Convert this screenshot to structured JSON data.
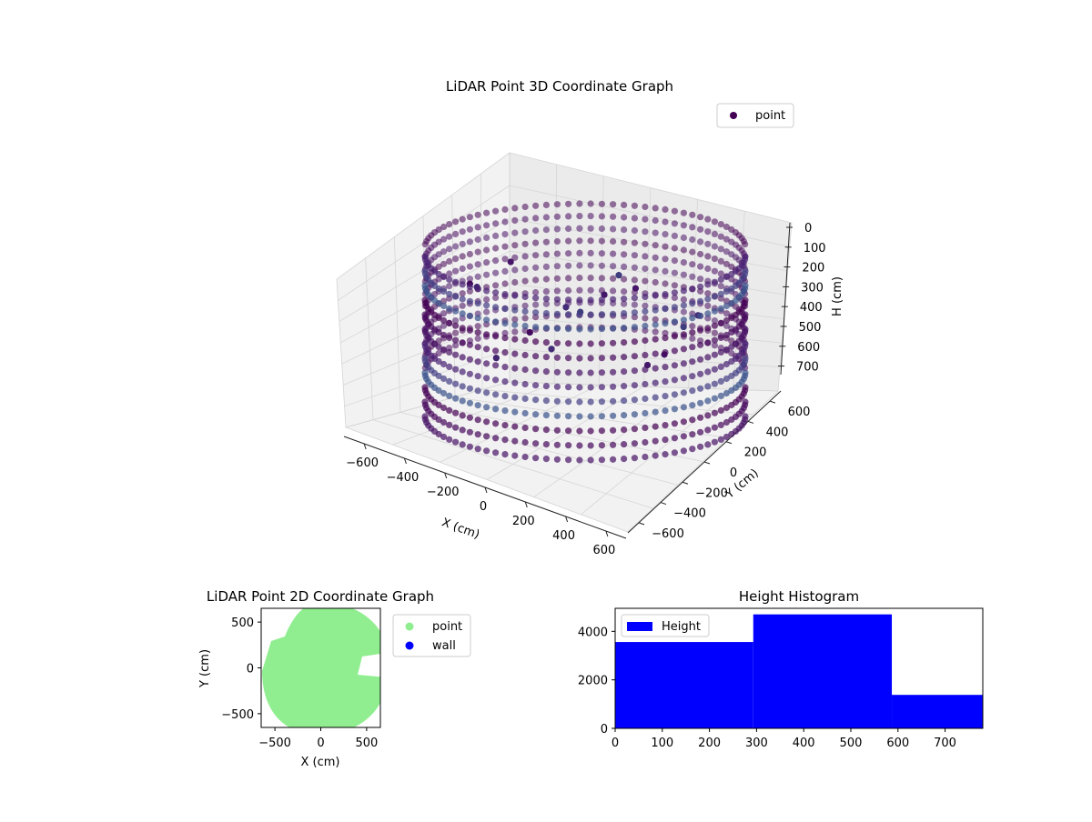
{
  "chart_data": [
    {
      "type": "scatter3d",
      "title": "LiDAR Point 3D Coordinate Graph",
      "xlabel": "X (cm)",
      "ylabel": "Y (cm)",
      "zlabel": "H (cm)",
      "x_ticks": [
        "−600",
        "−400",
        "−200",
        "0",
        "200",
        "400",
        "600"
      ],
      "y_ticks": [
        "−600",
        "−400",
        "−200",
        "0",
        "200",
        "400",
        "600"
      ],
      "z_ticks": [
        "0",
        "100",
        "200",
        "300",
        "400",
        "500",
        "600",
        "700"
      ],
      "xlim": [
        -700,
        700
      ],
      "ylim": [
        -700,
        700
      ],
      "zlim": [
        0,
        780
      ],
      "z_inverted": true,
      "legend": {
        "placement": "top-right",
        "entries": [
          "point"
        ]
      },
      "series": [
        {
          "name": "point",
          "color": "#440154",
          "shape": "cylindrical wall of radius ~600 cm spanning heights 0–780 cm, with interior clutter"
        }
      ]
    },
    {
      "type": "scatter",
      "title": "LiDAR Point 2D Coordinate Graph",
      "xlabel": "X (cm)",
      "ylabel": "Y (cm)",
      "x_ticks": [
        "−500",
        "0",
        "500"
      ],
      "y_ticks": [
        "500",
        "0",
        "−500"
      ],
      "xlim": [
        -650,
        650
      ],
      "ylim": [
        -650,
        650
      ],
      "legend": {
        "placement": "outside-right",
        "entries": [
          {
            "name": "point",
            "color": "#90ee90"
          },
          {
            "name": "wall",
            "color": "#0000ff"
          }
        ]
      }
    },
    {
      "type": "bar",
      "title": "Height Histogram",
      "x_ticks": [
        "0",
        "100",
        "200",
        "300",
        "400",
        "500",
        "600",
        "700"
      ],
      "y_ticks": [
        "0",
        "2000",
        "4000"
      ],
      "xlim": [
        0,
        780
      ],
      "ylim": [
        0,
        4950
      ],
      "legend": {
        "placement": "top-left",
        "entries": [
          {
            "name": "Height",
            "color": "#0000ff"
          }
        ]
      },
      "bins": [
        {
          "x0": 0,
          "x1": 293,
          "value": 3560
        },
        {
          "x0": 293,
          "x1": 587,
          "value": 4700
        },
        {
          "x0": 587,
          "x1": 780,
          "value": 1380
        }
      ]
    }
  ]
}
